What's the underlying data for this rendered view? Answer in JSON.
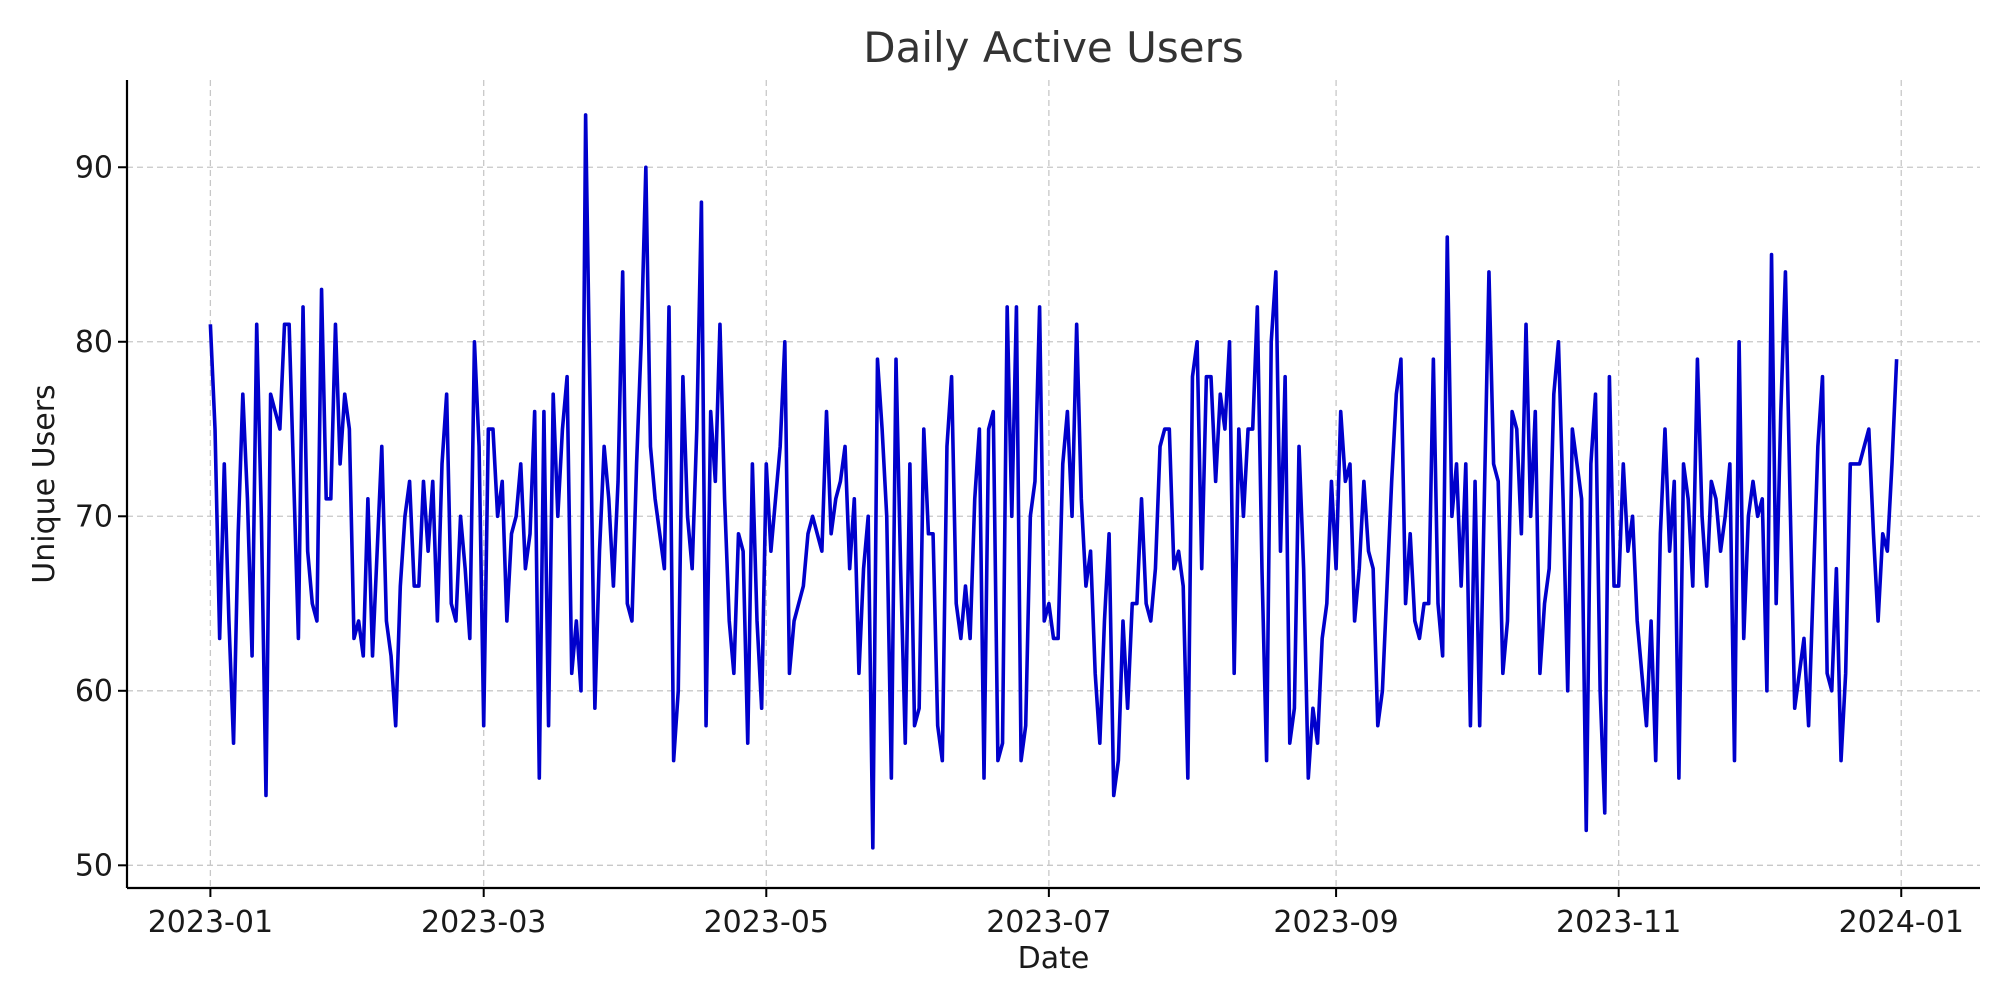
{
  "chart_data": {
    "type": "line",
    "title": "Daily Active Users",
    "xlabel": "Date",
    "ylabel": "Unique Users",
    "x_start": "2023-01-01",
    "x_end": "2023-12-31",
    "xlim": [
      "2022-12-14",
      "2024-01-18"
    ],
    "ylim": [
      48.7,
      95
    ],
    "x_ticks": [
      "2023-01",
      "2023-03",
      "2023-05",
      "2023-07",
      "2023-09",
      "2023-11",
      "2024-01"
    ],
    "y_ticks": [
      50,
      60,
      70,
      80,
      90
    ],
    "grid": true,
    "line_color": "#0000cc",
    "series": [
      {
        "x": [
          "2023-01-01",
          "2023-01-02",
          "2023-01-03",
          "2023-01-04",
          "2023-01-05",
          "2023-01-06",
          "2023-01-07",
          "2023-01-08",
          "2023-01-09",
          "2023-01-10",
          "2023-01-11",
          "2023-01-12",
          "2023-01-13",
          "2023-01-14",
          "2023-01-15",
          "2023-01-16",
          "2023-01-17",
          "2023-01-18",
          "2023-01-19",
          "2023-01-20",
          "2023-01-21",
          "2023-01-22",
          "2023-01-23",
          "2023-01-24",
          "2023-01-25",
          "2023-01-26",
          "2023-01-27",
          "2023-01-28",
          "2023-01-29",
          "2023-01-30",
          "2023-01-31",
          "2023-02-01",
          "2023-02-02",
          "2023-02-03",
          "2023-02-04",
          "2023-02-05",
          "2023-02-06",
          "2023-02-07",
          "2023-02-08",
          "2023-02-09",
          "2023-02-10",
          "2023-02-11",
          "2023-02-12",
          "2023-02-13",
          "2023-02-14",
          "2023-02-15",
          "2023-02-16",
          "2023-02-17",
          "2023-02-18",
          "2023-02-19",
          "2023-02-20",
          "2023-02-21",
          "2023-02-22",
          "2023-02-23",
          "2023-02-24",
          "2023-02-25",
          "2023-02-26",
          "2023-02-27",
          "2023-02-28",
          "2023-03-01",
          "2023-03-02",
          "2023-03-03",
          "2023-03-04",
          "2023-03-05",
          "2023-03-06",
          "2023-03-07",
          "2023-03-08",
          "2023-03-09",
          "2023-03-10",
          "2023-03-11",
          "2023-03-12",
          "2023-03-13",
          "2023-03-14",
          "2023-03-15",
          "2023-03-16",
          "2023-03-17",
          "2023-03-18",
          "2023-03-19",
          "2023-03-20",
          "2023-03-21",
          "2023-03-22",
          "2023-03-23",
          "2023-03-24",
          "2023-03-25",
          "2023-03-26",
          "2023-03-27",
          "2023-03-28",
          "2023-03-29",
          "2023-03-30",
          "2023-03-31",
          "2023-04-01",
          "2023-04-02",
          "2023-04-03",
          "2023-04-04",
          "2023-04-05",
          "2023-04-06",
          "2023-04-07",
          "2023-04-08",
          "2023-04-09",
          "2023-04-10",
          "2023-04-11",
          "2023-04-12",
          "2023-04-13",
          "2023-04-14",
          "2023-04-15",
          "2023-04-16",
          "2023-04-17",
          "2023-04-18",
          "2023-04-19",
          "2023-04-20",
          "2023-04-21",
          "2023-04-22",
          "2023-04-23",
          "2023-04-24",
          "2023-04-25",
          "2023-04-26",
          "2023-04-27",
          "2023-04-28",
          "2023-04-29",
          "2023-04-30",
          "2023-05-01",
          "2023-05-02",
          "2023-05-03",
          "2023-05-04",
          "2023-05-05",
          "2023-05-06",
          "2023-05-07",
          "2023-05-08",
          "2023-05-09",
          "2023-05-10",
          "2023-05-11",
          "2023-05-12",
          "2023-05-13",
          "2023-05-14",
          "2023-05-15",
          "2023-05-16",
          "2023-05-17",
          "2023-05-18",
          "2023-05-19",
          "2023-05-20",
          "2023-05-21",
          "2023-05-22",
          "2023-05-23",
          "2023-05-24",
          "2023-05-25",
          "2023-05-26",
          "2023-05-27",
          "2023-05-28",
          "2023-05-29",
          "2023-05-30",
          "2023-05-31",
          "2023-06-01",
          "2023-06-02",
          "2023-06-03",
          "2023-06-04",
          "2023-06-05",
          "2023-06-06",
          "2023-06-07",
          "2023-06-08",
          "2023-06-09",
          "2023-06-10",
          "2023-06-11",
          "2023-06-12",
          "2023-06-13",
          "2023-06-14",
          "2023-06-15",
          "2023-06-16",
          "2023-06-17",
          "2023-06-18",
          "2023-06-19",
          "2023-06-20",
          "2023-06-21",
          "2023-06-22",
          "2023-06-23",
          "2023-06-24",
          "2023-06-25",
          "2023-06-26",
          "2023-06-27",
          "2023-06-28",
          "2023-06-29",
          "2023-06-30",
          "2023-07-01",
          "2023-07-02",
          "2023-07-03",
          "2023-07-04",
          "2023-07-05",
          "2023-07-06",
          "2023-07-07",
          "2023-07-08",
          "2023-07-09",
          "2023-07-10",
          "2023-07-11",
          "2023-07-12",
          "2023-07-13",
          "2023-07-14",
          "2023-07-15",
          "2023-07-16",
          "2023-07-17",
          "2023-07-18",
          "2023-07-19",
          "2023-07-20",
          "2023-07-21",
          "2023-07-22",
          "2023-07-23",
          "2023-07-24",
          "2023-07-25",
          "2023-07-26",
          "2023-07-27",
          "2023-07-28",
          "2023-07-29",
          "2023-07-30",
          "2023-07-31",
          "2023-08-01",
          "2023-08-02",
          "2023-08-03",
          "2023-08-04",
          "2023-08-05",
          "2023-08-06",
          "2023-08-07",
          "2023-08-08",
          "2023-08-09",
          "2023-08-10",
          "2023-08-11",
          "2023-08-12",
          "2023-08-13",
          "2023-08-14",
          "2023-08-15",
          "2023-08-16",
          "2023-08-17",
          "2023-08-18",
          "2023-08-19",
          "2023-08-20",
          "2023-08-21",
          "2023-08-22",
          "2023-08-23",
          "2023-08-24",
          "2023-08-25",
          "2023-08-26",
          "2023-08-27",
          "2023-08-28",
          "2023-08-29",
          "2023-08-30",
          "2023-08-31",
          "2023-09-01",
          "2023-09-02",
          "2023-09-03",
          "2023-09-04",
          "2023-09-05",
          "2023-09-06",
          "2023-09-07",
          "2023-09-08",
          "2023-09-09",
          "2023-09-10",
          "2023-09-11",
          "2023-09-12",
          "2023-09-13",
          "2023-09-14",
          "2023-09-15",
          "2023-09-16",
          "2023-09-17",
          "2023-09-18",
          "2023-09-19",
          "2023-09-20",
          "2023-09-21",
          "2023-09-22",
          "2023-09-23",
          "2023-09-24",
          "2023-09-25",
          "2023-09-26",
          "2023-09-27",
          "2023-09-28",
          "2023-09-29",
          "2023-09-30",
          "2023-10-01",
          "2023-10-02",
          "2023-10-03",
          "2023-10-04",
          "2023-10-05",
          "2023-10-06",
          "2023-10-07",
          "2023-10-08",
          "2023-10-09",
          "2023-10-10",
          "2023-10-11",
          "2023-10-12",
          "2023-10-13",
          "2023-10-14",
          "2023-10-15",
          "2023-10-16",
          "2023-10-17",
          "2023-10-18",
          "2023-10-19",
          "2023-10-20",
          "2023-10-21",
          "2023-10-22",
          "2023-10-23",
          "2023-10-24",
          "2023-10-25",
          "2023-10-26",
          "2023-10-27",
          "2023-10-28",
          "2023-10-29",
          "2023-10-30",
          "2023-10-31",
          "2023-11-01",
          "2023-11-02",
          "2023-11-03",
          "2023-11-04",
          "2023-11-05",
          "2023-11-06",
          "2023-11-07",
          "2023-11-08",
          "2023-11-09",
          "2023-11-10",
          "2023-11-11",
          "2023-11-12",
          "2023-11-13",
          "2023-11-14",
          "2023-11-15",
          "2023-11-16",
          "2023-11-17",
          "2023-11-18",
          "2023-11-19",
          "2023-11-20",
          "2023-11-21",
          "2023-11-22",
          "2023-11-23",
          "2023-11-24",
          "2023-11-25",
          "2023-11-26",
          "2023-11-27",
          "2023-11-28",
          "2023-11-29",
          "2023-11-30",
          "2023-12-01",
          "2023-12-02",
          "2023-12-03",
          "2023-12-04",
          "2023-12-05",
          "2023-12-06",
          "2023-12-07",
          "2023-12-08",
          "2023-12-09",
          "2023-12-10",
          "2023-12-11",
          "2023-12-12",
          "2023-12-13",
          "2023-12-14",
          "2023-12-15",
          "2023-12-16",
          "2023-12-17",
          "2023-12-18",
          "2023-12-19",
          "2023-12-20",
          "2023-12-21",
          "2023-12-22",
          "2023-12-23",
          "2023-12-24",
          "2023-12-25",
          "2023-12-26",
          "2023-12-27",
          "2023-12-28",
          "2023-12-29",
          "2023-12-30",
          "2023-12-31"
        ],
        "values": [
          81,
          75,
          63,
          73,
          64,
          57,
          69,
          77,
          71,
          62,
          81,
          70,
          54,
          77,
          76,
          75,
          81,
          81,
          72,
          63,
          82,
          68,
          65,
          64,
          83,
          71,
          71,
          81,
          73,
          77,
          75,
          63,
          64,
          62,
          71,
          62,
          68,
          74,
          64,
          62,
          58,
          66,
          70,
          72,
          66,
          66,
          72,
          68,
          72,
          64,
          73,
          77,
          65,
          64,
          70,
          67,
          63,
          80,
          74,
          58,
          75,
          75,
          70,
          72,
          64,
          69,
          70,
          73,
          67,
          69,
          76,
          55,
          76,
          58,
          77,
          70,
          75,
          78,
          61,
          64,
          60,
          93,
          76,
          59,
          68,
          74,
          71,
          66,
          72,
          84,
          65,
          64,
          73,
          80,
          90,
          74,
          71,
          69,
          67,
          82,
          56,
          60,
          78,
          70,
          67,
          75,
          88,
          58,
          76,
          72,
          81,
          71,
          64,
          61,
          69,
          68,
          57,
          73,
          64,
          59,
          73,
          68,
          71,
          74,
          80,
          61,
          64,
          65,
          66,
          69,
          70,
          69,
          68,
          76,
          69,
          71,
          72,
          74,
          67,
          71,
          61,
          67,
          70,
          51,
          79,
          75,
          70,
          55,
          79,
          67,
          57,
          73,
          58,
          59,
          75,
          69,
          69,
          58,
          56,
          74,
          78,
          65,
          63,
          66,
          63,
          71,
          75,
          55,
          75,
          76,
          56,
          57,
          82,
          70,
          82,
          56,
          58,
          70,
          72,
          82,
          64,
          65,
          63,
          63,
          73,
          76,
          70,
          81,
          71,
          66,
          68,
          61,
          57,
          64,
          69,
          54,
          56,
          64,
          59,
          65,
          65,
          71,
          65,
          64,
          67,
          74,
          75,
          75,
          67,
          68,
          66,
          55,
          78,
          80,
          67,
          78,
          78,
          72,
          77,
          75,
          80,
          61,
          75,
          70,
          75,
          75,
          82,
          67,
          56,
          80,
          84,
          68,
          78,
          57,
          59,
          74,
          67,
          55,
          59,
          57,
          63,
          65,
          72,
          67,
          76,
          72,
          73,
          64,
          67,
          72,
          68,
          67,
          58,
          60,
          66,
          72,
          77,
          79,
          65,
          69,
          64,
          63,
          65,
          65,
          79,
          65,
          62,
          86,
          70,
          73,
          66,
          73,
          58,
          72,
          58,
          71,
          84,
          73,
          72,
          61,
          64,
          76,
          75,
          69,
          81,
          70,
          76,
          61,
          65,
          67,
          77,
          80,
          71,
          60,
          75,
          73,
          71,
          52,
          73,
          77,
          60,
          53,
          78,
          66,
          66,
          73,
          68,
          70,
          64,
          61,
          58,
          64,
          56,
          69,
          75,
          68,
          72,
          55,
          73,
          71,
          66,
          79,
          70,
          66,
          72,
          71,
          68,
          70,
          73,
          56,
          80,
          63,
          70,
          72,
          70,
          71,
          60,
          85,
          65,
          76,
          84,
          71,
          59,
          61,
          63,
          58,
          66,
          74,
          78,
          61,
          60,
          67,
          56,
          61,
          73,
          73,
          73,
          74,
          75,
          69,
          64,
          69,
          68,
          73,
          79
        ]
      }
    ]
  }
}
